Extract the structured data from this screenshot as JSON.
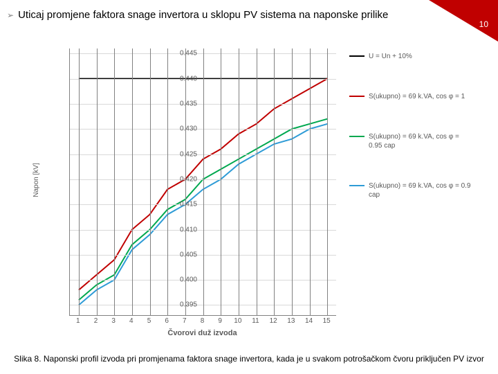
{
  "page_number": "10",
  "title": "Uticaj promjene faktora snage invertora u sklopu PV sistema na naponske prilike",
  "caption": "Slika 8. Naponski profil izvoda pri promjenama faktora snage  invertora, kada je u svakom potrošačkom čvoru  priključen PV izvor",
  "chart": {
    "type": "line",
    "x_axis_title": "Čvorovi duž izvoda",
    "y_axis_title": "Napon [kV]",
    "background_color": "#ffffff",
    "grid_color": "#d9d9d9",
    "axis_color": "#808080",
    "label_color": "#595959",
    "label_fontsize": 10,
    "line_width": 2,
    "ylim": [
      0.393,
      0.446
    ],
    "yticks": [
      0.395,
      0.4,
      0.405,
      0.41,
      0.415,
      0.42,
      0.425,
      0.43,
      0.435,
      0.44,
      0.445
    ],
    "ytick_labels": [
      "0.395",
      "0.400",
      "0.405",
      "0.410",
      "0.415",
      "0.420",
      "0.425",
      "0.430",
      "0.435",
      "0.440",
      "0.445"
    ],
    "xticks": [
      1,
      2,
      3,
      4,
      5,
      6,
      7,
      8,
      9,
      10,
      11,
      12,
      13,
      14,
      15
    ],
    "xtick_labels": [
      "1",
      "2",
      "3",
      "4",
      "5",
      "6",
      "7",
      "8",
      "9",
      "10",
      "11",
      "12",
      "13",
      "14",
      "15"
    ],
    "series": [
      {
        "name": "U = Un + 10%",
        "color": "#000000",
        "values": [
          0.44,
          0.44,
          0.44,
          0.44,
          0.44,
          0.44,
          0.44,
          0.44,
          0.44,
          0.44,
          0.44,
          0.44,
          0.44,
          0.44,
          0.44
        ]
      },
      {
        "name": "S(ukupno) = 69 k.VA, cos φ = 1",
        "color": "#c00000",
        "values": [
          0.398,
          0.401,
          0.404,
          0.41,
          0.413,
          0.418,
          0.42,
          0.424,
          0.426,
          0.429,
          0.431,
          0.434,
          0.436,
          0.438,
          0.44
        ]
      },
      {
        "name": "S(ukupno) = 69 k.VA, cos φ = 0.95 cap",
        "color": "#00a84f",
        "values": [
          0.396,
          0.399,
          0.401,
          0.407,
          0.41,
          0.414,
          0.416,
          0.42,
          0.422,
          0.424,
          0.426,
          0.428,
          0.43,
          0.431,
          0.432
        ]
      },
      {
        "name": "S(ukupno) = 69 k.VA, cos φ = 0.9 cap",
        "color": "#2e9bd6",
        "values": [
          0.395,
          0.398,
          0.4,
          0.406,
          0.409,
          0.413,
          0.415,
          0.418,
          0.42,
          0.423,
          0.425,
          0.427,
          0.428,
          0.43,
          0.431
        ]
      }
    ]
  }
}
